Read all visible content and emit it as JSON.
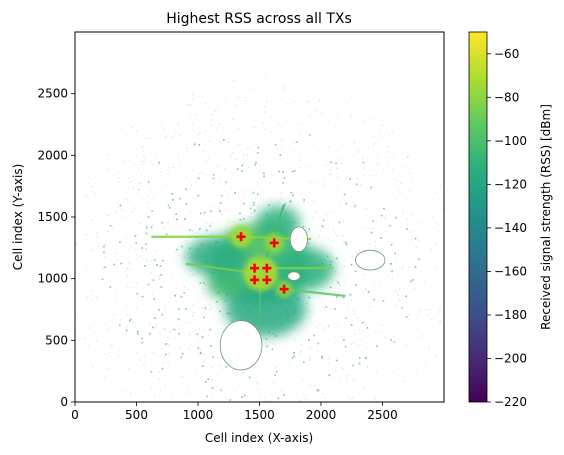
{
  "chart_data": {
    "type": "heatmap",
    "title": "Highest RSS across all TXs",
    "xlabel": "Cell index (X-axis)",
    "ylabel": "Cell index (Y-axis)",
    "xlim": [
      0,
      3000
    ],
    "ylim": [
      0,
      3000
    ],
    "xticks": [
      0,
      500,
      1000,
      1500,
      2000,
      2500
    ],
    "yticks": [
      0,
      500,
      1000,
      1500,
      2000,
      2500
    ],
    "grid": false,
    "colorbar": {
      "label": "Received signal strength (RSS) [dBm]",
      "min": -220,
      "max": -50,
      "ticks": [
        -220,
        -200,
        -180,
        -160,
        -140,
        -120,
        -100,
        -80,
        -60
      ],
      "colormap": "viridis"
    },
    "transmitters": {
      "marker": "plus",
      "color": "#ff0000",
      "points": [
        {
          "x": 1350,
          "y": 1340
        },
        {
          "x": 1620,
          "y": 1290
        },
        {
          "x": 1460,
          "y": 1085
        },
        {
          "x": 1560,
          "y": 1085
        },
        {
          "x": 1460,
          "y": 990
        },
        {
          "x": 1560,
          "y": 990
        },
        {
          "x": 1700,
          "y": 915
        }
      ]
    },
    "coverage_blobs": [
      {
        "x": 1500,
        "y": 1120,
        "rx": 420,
        "ry": 330,
        "value": -108
      },
      {
        "x": 1450,
        "y": 1300,
        "rx": 260,
        "ry": 130,
        "value": -95
      },
      {
        "x": 1150,
        "y": 1180,
        "rx": 250,
        "ry": 160,
        "value": -115
      },
      {
        "x": 1850,
        "y": 1080,
        "rx": 260,
        "ry": 180,
        "value": -112
      },
      {
        "x": 1550,
        "y": 760,
        "rx": 330,
        "ry": 230,
        "value": -118
      },
      {
        "x": 1250,
        "y": 950,
        "rx": 180,
        "ry": 120,
        "value": -105
      },
      {
        "x": 1650,
        "y": 1450,
        "rx": 180,
        "ry": 140,
        "value": -112
      }
    ],
    "hot_spots": [
      {
        "x": 1350,
        "y": 1340,
        "r": 90,
        "value": -75
      },
      {
        "x": 1620,
        "y": 1290,
        "r": 80,
        "value": -78
      },
      {
        "x": 1510,
        "y": 1040,
        "r": 140,
        "value": -72
      },
      {
        "x": 1700,
        "y": 915,
        "r": 70,
        "value": -80
      }
    ],
    "rays": [
      {
        "x0": 1350,
        "y0": 1340,
        "x1": 620,
        "y1": 1340,
        "value": -82
      },
      {
        "x0": 1350,
        "y0": 1340,
        "x1": 1920,
        "y1": 1320,
        "value": -82
      },
      {
        "x0": 1510,
        "y0": 1085,
        "x1": 2100,
        "y1": 1085,
        "value": -84
      },
      {
        "x0": 1510,
        "y0": 1040,
        "x1": 900,
        "y1": 1120,
        "value": -88
      },
      {
        "x0": 1700,
        "y0": 915,
        "x1": 2200,
        "y1": 860,
        "value": -92
      },
      {
        "x0": 1510,
        "y0": 1040,
        "x1": 1500,
        "y1": 600,
        "value": -100
      },
      {
        "x0": 1510,
        "y0": 1040,
        "x1": 1700,
        "y1": 1600,
        "value": -105
      }
    ],
    "obstacles": [
      {
        "x": 1350,
        "y": 460,
        "rx": 170,
        "ry": 200
      },
      {
        "x": 1820,
        "y": 1320,
        "rx": 70,
        "ry": 100
      },
      {
        "x": 1780,
        "y": 1020,
        "rx": 50,
        "ry": 35
      },
      {
        "x": 2400,
        "y": 1150,
        "rx": 120,
        "ry": 80
      }
    ]
  }
}
